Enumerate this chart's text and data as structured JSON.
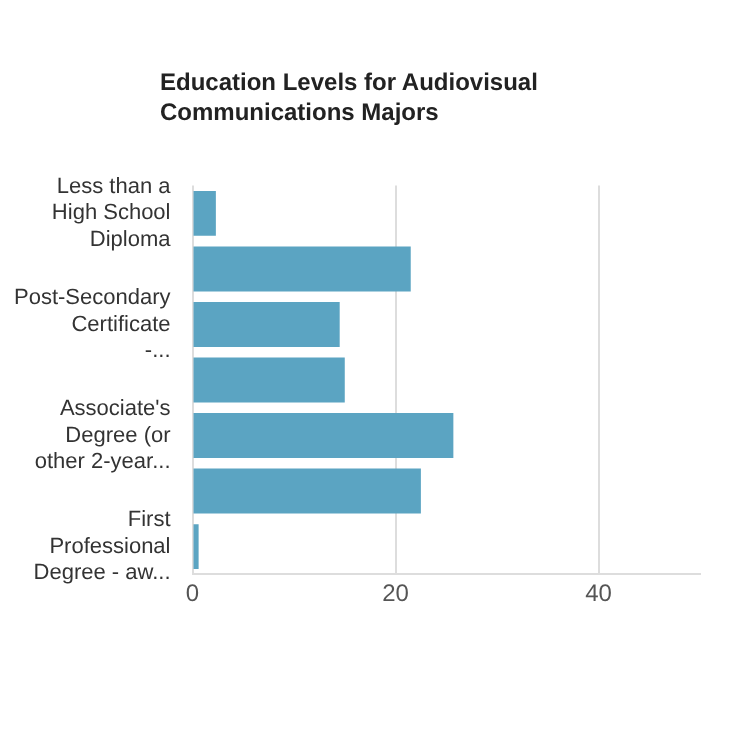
{
  "chart_data": {
    "type": "bar",
    "orientation": "horizontal",
    "title": "Education Levels for Audiovisual Communications Majors",
    "categories": [
      "Less than a High School Diploma",
      null,
      "Post-Secondary Certificate -...",
      null,
      "Associate's Degree (or other 2-year...",
      null,
      "First Professional Degree - aw..."
    ],
    "values": [
      2.3,
      21.5,
      14.5,
      15,
      25.7,
      22.5,
      0.6
    ],
    "color": "#5ba4c2",
    "xlim": [
      0,
      50
    ],
    "xticks": [
      0,
      20,
      40
    ],
    "grid": "x"
  }
}
